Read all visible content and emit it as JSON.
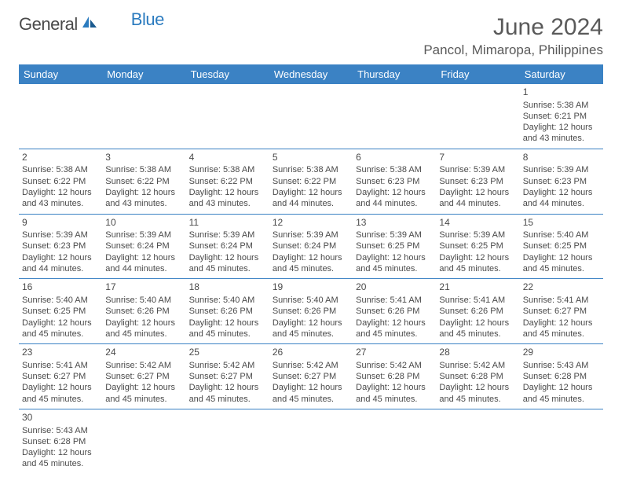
{
  "logo": {
    "text1": "General",
    "text2": "Blue"
  },
  "title": "June 2024",
  "location": "Pancol, Mimaropa, Philippines",
  "colors": {
    "header_bg": "#3b82c4",
    "header_text": "#ffffff",
    "border": "#3b82c4",
    "logo_gray": "#4a4a4a",
    "logo_blue": "#2b7bbf"
  },
  "weekdays": [
    "Sunday",
    "Monday",
    "Tuesday",
    "Wednesday",
    "Thursday",
    "Friday",
    "Saturday"
  ],
  "weeks": [
    [
      null,
      null,
      null,
      null,
      null,
      null,
      {
        "d": "1",
        "sr": "5:38 AM",
        "ss": "6:21 PM",
        "dl": "12 hours and 43 minutes."
      }
    ],
    [
      {
        "d": "2",
        "sr": "5:38 AM",
        "ss": "6:22 PM",
        "dl": "12 hours and 43 minutes."
      },
      {
        "d": "3",
        "sr": "5:38 AM",
        "ss": "6:22 PM",
        "dl": "12 hours and 43 minutes."
      },
      {
        "d": "4",
        "sr": "5:38 AM",
        "ss": "6:22 PM",
        "dl": "12 hours and 43 minutes."
      },
      {
        "d": "5",
        "sr": "5:38 AM",
        "ss": "6:22 PM",
        "dl": "12 hours and 44 minutes."
      },
      {
        "d": "6",
        "sr": "5:38 AM",
        "ss": "6:23 PM",
        "dl": "12 hours and 44 minutes."
      },
      {
        "d": "7",
        "sr": "5:39 AM",
        "ss": "6:23 PM",
        "dl": "12 hours and 44 minutes."
      },
      {
        "d": "8",
        "sr": "5:39 AM",
        "ss": "6:23 PM",
        "dl": "12 hours and 44 minutes."
      }
    ],
    [
      {
        "d": "9",
        "sr": "5:39 AM",
        "ss": "6:23 PM",
        "dl": "12 hours and 44 minutes."
      },
      {
        "d": "10",
        "sr": "5:39 AM",
        "ss": "6:24 PM",
        "dl": "12 hours and 44 minutes."
      },
      {
        "d": "11",
        "sr": "5:39 AM",
        "ss": "6:24 PM",
        "dl": "12 hours and 45 minutes."
      },
      {
        "d": "12",
        "sr": "5:39 AM",
        "ss": "6:24 PM",
        "dl": "12 hours and 45 minutes."
      },
      {
        "d": "13",
        "sr": "5:39 AM",
        "ss": "6:25 PM",
        "dl": "12 hours and 45 minutes."
      },
      {
        "d": "14",
        "sr": "5:39 AM",
        "ss": "6:25 PM",
        "dl": "12 hours and 45 minutes."
      },
      {
        "d": "15",
        "sr": "5:40 AM",
        "ss": "6:25 PM",
        "dl": "12 hours and 45 minutes."
      }
    ],
    [
      {
        "d": "16",
        "sr": "5:40 AM",
        "ss": "6:25 PM",
        "dl": "12 hours and 45 minutes."
      },
      {
        "d": "17",
        "sr": "5:40 AM",
        "ss": "6:26 PM",
        "dl": "12 hours and 45 minutes."
      },
      {
        "d": "18",
        "sr": "5:40 AM",
        "ss": "6:26 PM",
        "dl": "12 hours and 45 minutes."
      },
      {
        "d": "19",
        "sr": "5:40 AM",
        "ss": "6:26 PM",
        "dl": "12 hours and 45 minutes."
      },
      {
        "d": "20",
        "sr": "5:41 AM",
        "ss": "6:26 PM",
        "dl": "12 hours and 45 minutes."
      },
      {
        "d": "21",
        "sr": "5:41 AM",
        "ss": "6:26 PM",
        "dl": "12 hours and 45 minutes."
      },
      {
        "d": "22",
        "sr": "5:41 AM",
        "ss": "6:27 PM",
        "dl": "12 hours and 45 minutes."
      }
    ],
    [
      {
        "d": "23",
        "sr": "5:41 AM",
        "ss": "6:27 PM",
        "dl": "12 hours and 45 minutes."
      },
      {
        "d": "24",
        "sr": "5:42 AM",
        "ss": "6:27 PM",
        "dl": "12 hours and 45 minutes."
      },
      {
        "d": "25",
        "sr": "5:42 AM",
        "ss": "6:27 PM",
        "dl": "12 hours and 45 minutes."
      },
      {
        "d": "26",
        "sr": "5:42 AM",
        "ss": "6:27 PM",
        "dl": "12 hours and 45 minutes."
      },
      {
        "d": "27",
        "sr": "5:42 AM",
        "ss": "6:28 PM",
        "dl": "12 hours and 45 minutes."
      },
      {
        "d": "28",
        "sr": "5:42 AM",
        "ss": "6:28 PM",
        "dl": "12 hours and 45 minutes."
      },
      {
        "d": "29",
        "sr": "5:43 AM",
        "ss": "6:28 PM",
        "dl": "12 hours and 45 minutes."
      }
    ],
    [
      {
        "d": "30",
        "sr": "5:43 AM",
        "ss": "6:28 PM",
        "dl": "12 hours and 45 minutes."
      },
      null,
      null,
      null,
      null,
      null,
      null
    ]
  ],
  "labels": {
    "sunrise": "Sunrise:",
    "sunset": "Sunset:",
    "daylight": "Daylight:"
  }
}
